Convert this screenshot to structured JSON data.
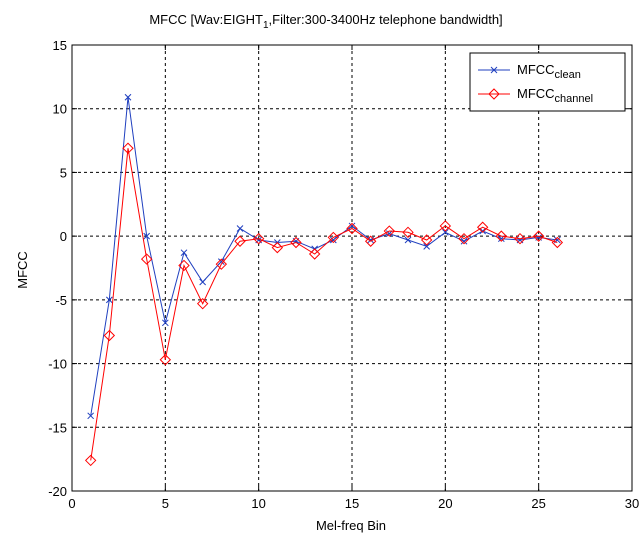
{
  "chart_data": {
    "type": "line",
    "title": "MFCC [Wav:EIGHT",
    "title_subscript": "1",
    "title_suffix": ",Filter:300-3400Hz telephone bandwidth]",
    "xlabel": "Mel-freq Bin",
    "ylabel": "MFCC",
    "xlim": [
      0,
      30
    ],
    "ylim": [
      -20,
      15
    ],
    "xticks": [
      0,
      5,
      10,
      15,
      20,
      25,
      30
    ],
    "yticks": [
      -20,
      -15,
      -10,
      -5,
      0,
      5,
      10,
      15
    ],
    "grid": true,
    "grid_style": "dashed",
    "legend_position": "top-right",
    "x": [
      1,
      2,
      3,
      4,
      5,
      6,
      7,
      8,
      9,
      10,
      11,
      12,
      13,
      14,
      15,
      16,
      17,
      18,
      19,
      20,
      21,
      22,
      23,
      24,
      25,
      26
    ],
    "series": [
      {
        "name": "MFCC",
        "name_subscript": "clean",
        "color": "#1f3fbf",
        "marker": "x",
        "values": [
          -14.1,
          -5.0,
          10.9,
          0.0,
          -6.8,
          -1.3,
          -3.6,
          -2.0,
          0.6,
          -0.3,
          -0.5,
          -0.4,
          -1.0,
          -0.3,
          0.8,
          -0.3,
          0.2,
          -0.3,
          -0.8,
          0.3,
          -0.4,
          0.4,
          -0.2,
          -0.3,
          -0.1,
          -0.3
        ]
      },
      {
        "name": "MFCC",
        "name_subscript": "channel",
        "color": "#ff0000",
        "marker": "diamond",
        "values": [
          -17.6,
          -7.8,
          6.9,
          -1.8,
          -9.7,
          -2.3,
          -5.3,
          -2.2,
          -0.4,
          -0.2,
          -0.9,
          -0.5,
          -1.4,
          -0.1,
          0.6,
          -0.4,
          0.4,
          0.3,
          -0.3,
          0.8,
          -0.2,
          0.7,
          0.0,
          -0.2,
          0.0,
          -0.5
        ]
      }
    ]
  }
}
